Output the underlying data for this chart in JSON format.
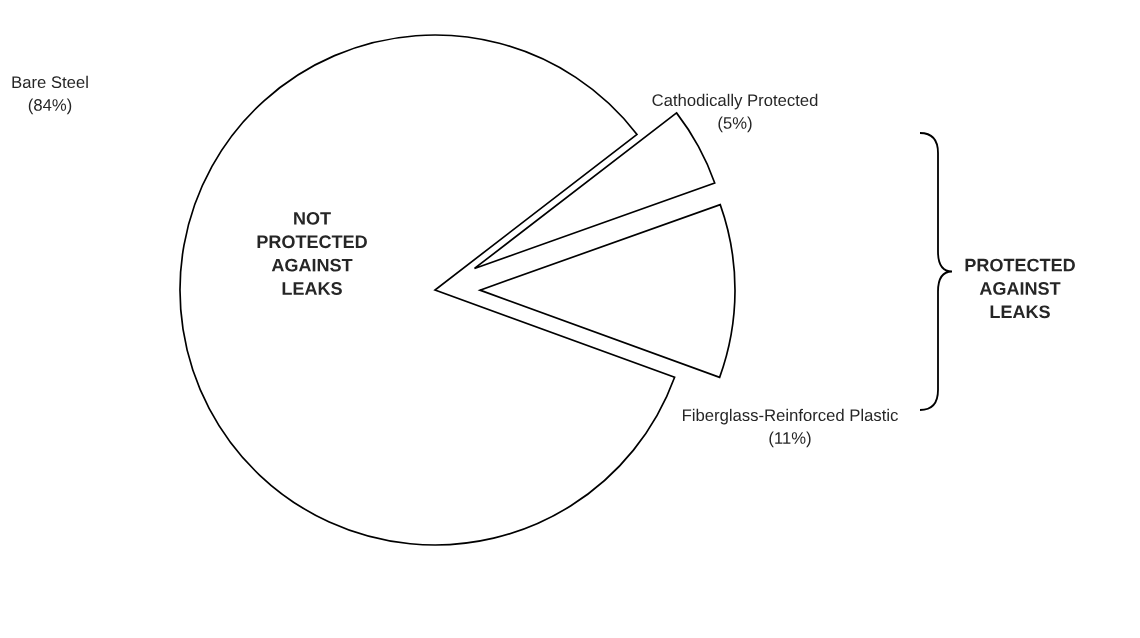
{
  "chart_data": {
    "type": "pie",
    "categories": [
      "Bare Steel",
      "Cathodically Protected",
      "Fiberglass-Reinforced Plastic"
    ],
    "values": [
      84,
      5,
      11
    ],
    "value_labels": [
      "(84%)",
      "(5%)",
      "(11%)"
    ],
    "colors": [
      "#ffffff",
      "#ffffff",
      "#ffffff"
    ],
    "annotations": [
      "NOT\nPROTECTED\nAGAINST\nLEAKS",
      "PROTECTED\nAGAINST\nLEAKS"
    ]
  }
}
